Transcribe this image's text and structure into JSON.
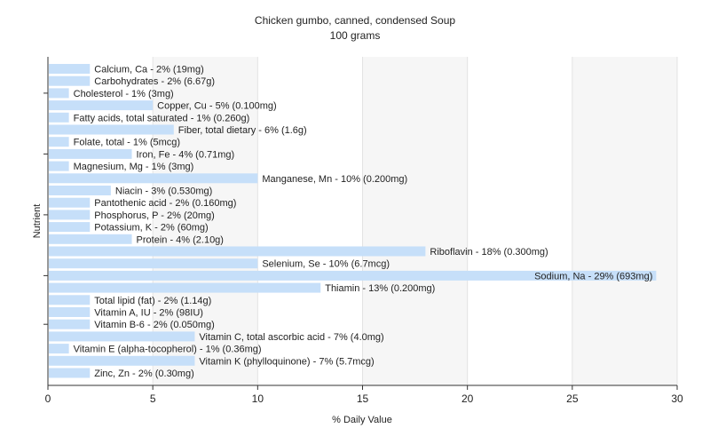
{
  "chart_data": {
    "type": "bar",
    "orientation": "horizontal",
    "title": "Chicken gumbo, canned, condensed Soup",
    "subtitle": "100 grams",
    "xlabel": "% Daily Value",
    "ylabel": "Nutrient",
    "xlim": [
      0,
      30
    ],
    "xticks": [
      0,
      5,
      10,
      15,
      20,
      25,
      30
    ],
    "grid": true,
    "bar_color": "#c6dff9",
    "categories": [
      "Calcium, Ca",
      "Carbohydrates",
      "Cholesterol",
      "Copper, Cu",
      "Fatty acids, total saturated",
      "Fiber, total dietary",
      "Folate, total",
      "Iron, Fe",
      "Magnesium, Mg",
      "Manganese, Mn",
      "Niacin",
      "Pantothenic acid",
      "Phosphorus, P",
      "Potassium, K",
      "Protein",
      "Riboflavin",
      "Selenium, Se",
      "Sodium, Na",
      "Thiamin",
      "Total lipid (fat)",
      "Vitamin A, IU",
      "Vitamin B-6",
      "Vitamin C, total ascorbic acid",
      "Vitamin E (alpha-tocopherol)",
      "Vitamin K (phylloquinone)",
      "Zinc, Zn"
    ],
    "values": [
      2,
      2,
      1,
      5,
      1,
      6,
      1,
      4,
      1,
      10,
      3,
      2,
      2,
      2,
      4,
      18,
      10,
      29,
      13,
      2,
      2,
      2,
      7,
      1,
      7,
      2
    ],
    "labels": [
      "Calcium, Ca - 2% (19mg)",
      "Carbohydrates - 2% (6.67g)",
      "Cholesterol - 1% (3mg)",
      "Copper, Cu - 5% (0.100mg)",
      "Fatty acids, total saturated - 1% (0.260g)",
      "Fiber, total dietary - 6% (1.6g)",
      "Folate, total - 1% (5mcg)",
      "Iron, Fe - 4% (0.71mg)",
      "Magnesium, Mg - 1% (3mg)",
      "Manganese, Mn - 10% (0.200mg)",
      "Niacin - 3% (0.530mg)",
      "Pantothenic acid - 2% (0.160mg)",
      "Phosphorus, P - 2% (20mg)",
      "Potassium, K - 2% (60mg)",
      "Protein - 4% (2.10g)",
      "Riboflavin - 18% (0.300mg)",
      "Selenium, Se - 10% (6.7mcg)",
      "Sodium, Na - 29% (693mg)",
      "Thiamin - 13% (0.200mg)",
      "Total lipid (fat) - 2% (1.14g)",
      "Vitamin A, IU - 2% (98IU)",
      "Vitamin B-6 - 2% (0.050mg)",
      "Vitamin C, total ascorbic acid - 7% (4.0mg)",
      "Vitamin E (alpha-tocopherol) - 1% (0.36mg)",
      "Vitamin K (phylloquinone) - 7% (5.7mcg)",
      "Zinc, Zn - 2% (0.30mg)"
    ]
  }
}
